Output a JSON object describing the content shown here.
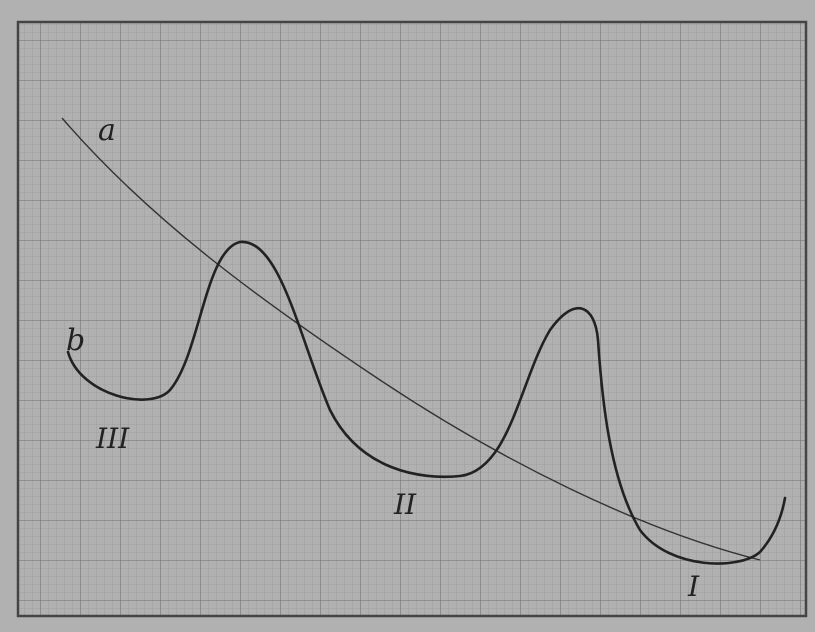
{
  "curve_labels": [
    "a",
    "b"
  ],
  "region_labels": [
    "III",
    "II",
    "I"
  ]
}
